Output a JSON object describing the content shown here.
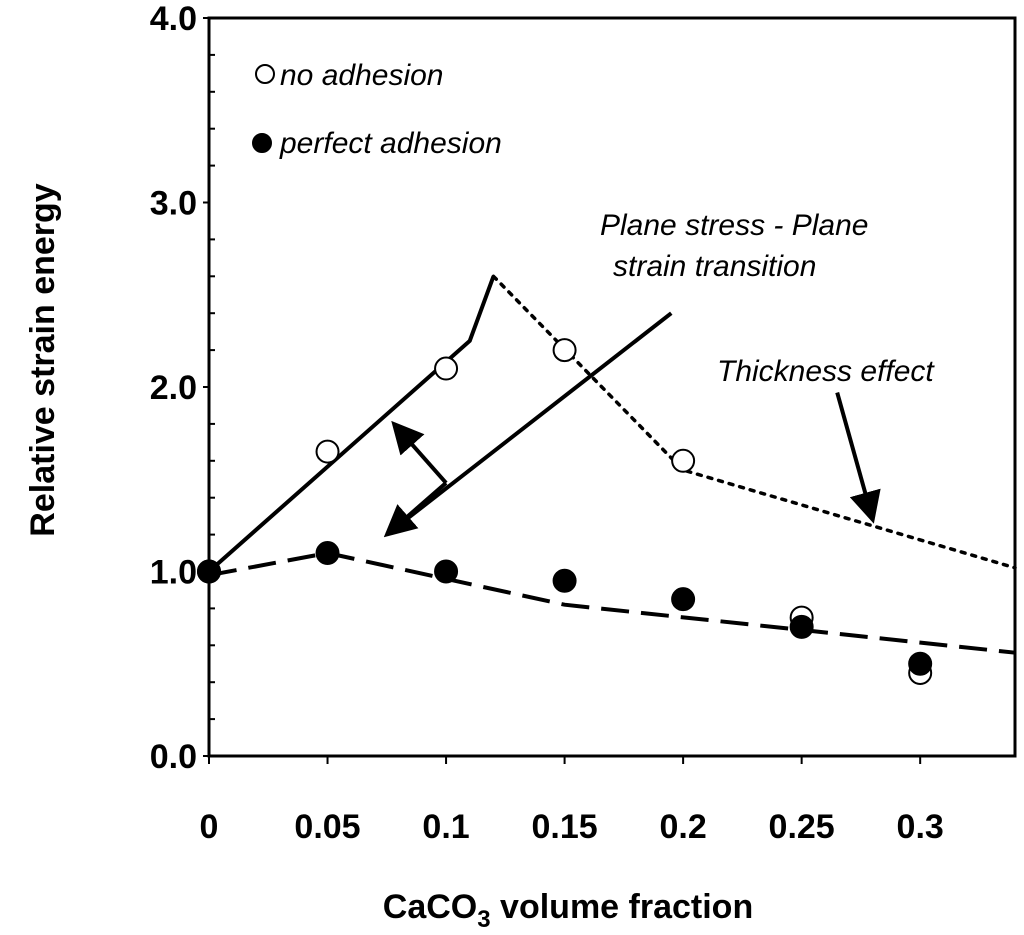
{
  "chart_data": {
    "type": "scatter",
    "title": "",
    "xlabel": {
      "prefix": "CaCO",
      "subscript": "3",
      "suffix": " volume fraction"
    },
    "ylabel": "Relative strain energy",
    "xlim": [
      0,
      0.34
    ],
    "ylim": [
      0,
      4.0
    ],
    "x_ticks": [
      0,
      0.05,
      0.1,
      0.15,
      0.2,
      0.25,
      0.3
    ],
    "x_tick_labels": [
      "0",
      "0.05",
      "0.1",
      "0.15",
      "0.2",
      "0.25",
      "0.3"
    ],
    "y_ticks": [
      0,
      1,
      2,
      3,
      4
    ],
    "y_tick_labels": [
      "0.0",
      "1.0",
      "2.0",
      "3.0",
      "4.0"
    ],
    "y_minor_step": 0.2,
    "legend_position": "top-left",
    "series": [
      {
        "name": "no adhesion",
        "marker": "open-circle",
        "x": [
          0,
          0.05,
          0.1,
          0.15,
          0.2,
          0.25,
          0.3
        ],
        "y": [
          1.0,
          1.65,
          2.1,
          2.2,
          1.6,
          0.75,
          0.45
        ]
      },
      {
        "name": "perfect adhesion",
        "marker": "filled-circle",
        "x": [
          0,
          0.05,
          0.1,
          0.15,
          0.2,
          0.25,
          0.3
        ],
        "y": [
          1.0,
          1.1,
          1.0,
          0.95,
          0.85,
          0.7,
          0.5
        ]
      }
    ],
    "lines": [
      {
        "name": "solid-trend",
        "style": "solid",
        "x": [
          0,
          0.11,
          0.12
        ],
        "y": [
          1.0,
          2.25,
          2.6
        ]
      },
      {
        "name": "dotted-trend",
        "style": "dotted",
        "x": [
          0.12,
          0.2,
          0.34
        ],
        "y": [
          2.6,
          1.55,
          1.02
        ]
      },
      {
        "name": "dashed-trend",
        "style": "dashed",
        "x": [
          0,
          0.05,
          0.15,
          0.34
        ],
        "y": [
          0.98,
          1.1,
          0.82,
          0.56
        ]
      },
      {
        "name": "transition-line",
        "style": "solid",
        "x": [
          0.075,
          0.195
        ],
        "y": [
          1.2,
          2.4
        ]
      }
    ],
    "arrows": [
      {
        "name": "transition-arrow-down",
        "from": [
          0.1,
          1.48
        ],
        "to": [
          0.075,
          1.2
        ]
      },
      {
        "name": "transition-arrow-up",
        "from": [
          0.1,
          1.48
        ],
        "to": [
          0.078,
          1.8
        ]
      },
      {
        "name": "thickness-arrow",
        "from": [
          0.265,
          1.97
        ],
        "to": [
          0.28,
          1.28
        ]
      }
    ],
    "annotations": [
      {
        "name": "transition-label-line1",
        "text": "Plane stress - Plane"
      },
      {
        "name": "transition-label-line2",
        "text": "strain transition"
      },
      {
        "name": "thickness-label",
        "text": "Thickness effect"
      }
    ]
  }
}
